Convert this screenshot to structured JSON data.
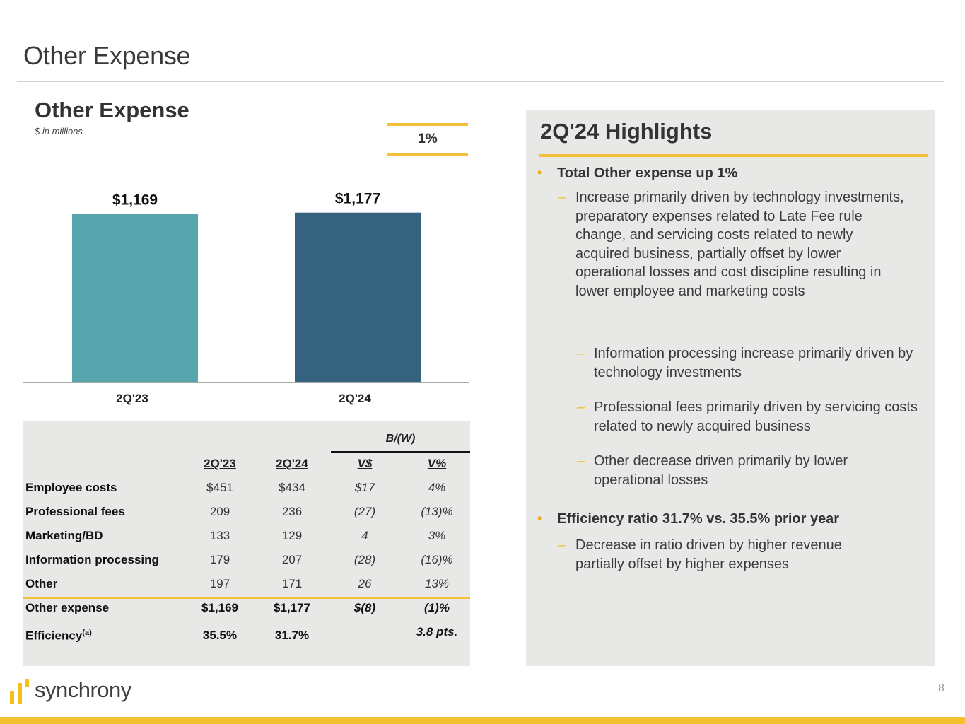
{
  "page": {
    "title": "Other Expense",
    "page_number": "8"
  },
  "chart_panel": {
    "title": "Other Expense",
    "subtitle": "$ in millions",
    "growth_badge": "1%"
  },
  "chart_data": {
    "type": "bar",
    "title": "Other Expense",
    "subtitle": "$ in millions",
    "categories": [
      "2Q'23",
      "2Q'24"
    ],
    "values": [
      1169,
      1177
    ],
    "value_labels": [
      "$1,169",
      "$1,177"
    ],
    "colors": [
      "#58a6ad",
      "#35637f"
    ],
    "xlabel": "",
    "ylabel": "",
    "ylim": [
      0,
      1200
    ],
    "grid": false,
    "legend": "none"
  },
  "table": {
    "group_header": "B/(W)",
    "columns": [
      "2Q'23",
      "2Q'24",
      "V$",
      "V%"
    ],
    "rows": [
      {
        "label": "Employee costs",
        "values": [
          "$451",
          "$434",
          "$17",
          "4%"
        ]
      },
      {
        "label": "Professional fees",
        "values": [
          "209",
          "236",
          "(27)",
          "(13)%"
        ]
      },
      {
        "label": "Marketing/BD",
        "values": [
          "133",
          "129",
          "4",
          "3%"
        ]
      },
      {
        "label": "Information processing",
        "values": [
          "179",
          "207",
          "(28)",
          "(16)%"
        ]
      },
      {
        "label": "Other",
        "values": [
          "197",
          "171",
          "26",
          "13%"
        ]
      }
    ],
    "total": {
      "label": "Other expense",
      "values": [
        "$1,169",
        "$1,177",
        "$(8)",
        "(1)%"
      ]
    },
    "efficiency": {
      "label": "Efficiency",
      "superscript": "(a)",
      "values": [
        "35.5%",
        "31.7%",
        "",
        "3.8 pts."
      ]
    }
  },
  "highlights": {
    "title": "2Q'24 Highlights",
    "bullets": [
      {
        "text": "Total Other expense up 1%",
        "subs": [
          "Increase primarily driven by technology investments, preparatory expenses related to Late Fee rule change, and servicing costs related to newly acquired business, partially offset by lower operational losses and cost discipline resulting in lower employee and marketing costs"
        ],
        "subsubs": [
          "Information processing increase primarily driven by technology investments",
          "Professional fees primarily driven by servicing costs related to newly acquired business",
          "Other decrease driven primarily by lower operational losses"
        ]
      },
      {
        "text": "Efficiency ratio 31.7% vs. 35.5% prior year",
        "subs": [
          "Decrease in ratio driven by higher revenue partially offset by higher expenses"
        ]
      }
    ]
  },
  "footer": {
    "logo_text": "synchrony",
    "brand_color": "#f5c12e"
  }
}
